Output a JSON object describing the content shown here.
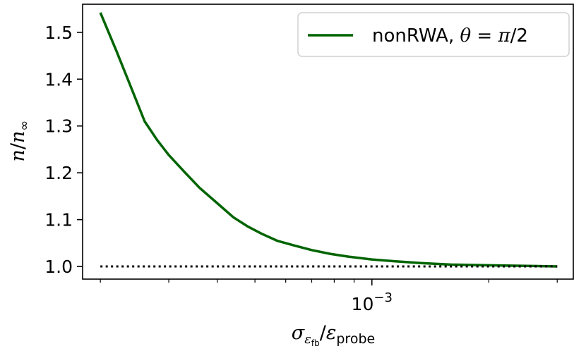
{
  "chart_data": {
    "type": "line",
    "xscale": "log",
    "xlim": [
      0.00018,
      0.0033
    ],
    "ylim": [
      0.973,
      1.56
    ],
    "grid": false,
    "legend_position": "top-right",
    "xlabel": {
      "sym": "σ",
      "sub": "ε",
      "subsub": "fb",
      "slash": "/",
      "sym2": "ε",
      "sub2": "probe"
    },
    "ylabel": {
      "n": "n",
      "slash": "/",
      "n2": "n",
      "sub": "∞"
    },
    "x_major_ticks": [
      {
        "value": 0.001,
        "base": "10",
        "exp": "−3"
      }
    ],
    "x_minor_ticks": [
      0.0002,
      0.0003,
      0.0004,
      0.0005,
      0.0006,
      0.0007,
      0.0008,
      0.0009,
      0.002,
      0.003
    ],
    "y_ticks": [
      {
        "value": 1.0,
        "label": "1.0"
      },
      {
        "value": 1.1,
        "label": "1.1"
      },
      {
        "value": 1.2,
        "label": "1.2"
      },
      {
        "value": 1.3,
        "label": "1.3"
      },
      {
        "value": 1.4,
        "label": "1.4"
      },
      {
        "value": 1.5,
        "label": "1.5"
      }
    ],
    "series": [
      {
        "name": "nonRWA, θ = π/2",
        "legend": {
          "text": "nonRWA, ",
          "theta": "θ",
          "eq": " = ",
          "pi": "π",
          "rest": "/2"
        },
        "color": "#006400",
        "style": "solid",
        "x": [
          0.0002,
          0.00022,
          0.00024,
          0.00026,
          0.00028,
          0.0003,
          0.00033,
          0.00036,
          0.0004,
          0.00044,
          0.00048,
          0.00052,
          0.00057,
          0.00063,
          0.0007,
          0.00078,
          0.00087,
          0.001,
          0.00115,
          0.00135,
          0.0016,
          0.0019,
          0.0022,
          0.0026,
          0.003
        ],
        "y": [
          1.542,
          1.46,
          1.382,
          1.31,
          1.27,
          1.238,
          1.201,
          1.168,
          1.135,
          1.105,
          1.085,
          1.07,
          1.055,
          1.045,
          1.035,
          1.027,
          1.021,
          1.015,
          1.011,
          1.007,
          1.004,
          1.003,
          1.002,
          1.001,
          1.0
        ]
      },
      {
        "color": "#000000",
        "style": "dotted",
        "x": [
          0.0002,
          0.003
        ],
        "y": [
          1.0,
          1.0
        ]
      }
    ]
  }
}
